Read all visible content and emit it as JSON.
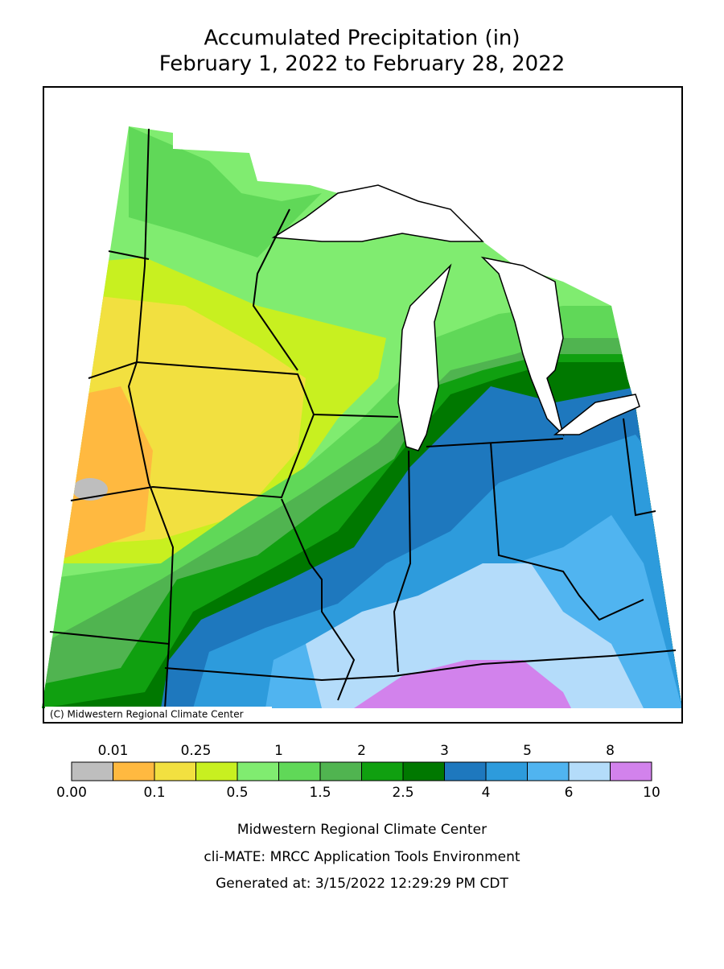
{
  "title": {
    "lines": [
      "Accumulated Precipitation (in)",
      "February 1, 2022 to February 28, 2022"
    ]
  },
  "map": {
    "credit": "(C) Midwestern Regional Climate Center"
  },
  "legend": {
    "colors": [
      "#bebebe",
      "#ffb940",
      "#f2e040",
      "#c8f020",
      "#80ec70",
      "#60d858",
      "#50b450",
      "#10a010",
      "#007800",
      "#1e78be",
      "#2d9bdc",
      "#50b4f0",
      "#b4dcfa",
      "#d282ec"
    ],
    "upper_labels": [
      "0.01",
      "0.25",
      "1",
      "2",
      "3",
      "5",
      "8"
    ],
    "lower_labels": [
      "0.00",
      "0.1",
      "0.5",
      "1.5",
      "2.5",
      "4",
      "6",
      "10"
    ]
  },
  "footer": {
    "lines": [
      "Midwestern Regional Climate Center",
      "cli-MATE: MRCC Application Tools Environment",
      "Generated at: 3/15/2022 12:29:29 PM CDT"
    ]
  }
}
